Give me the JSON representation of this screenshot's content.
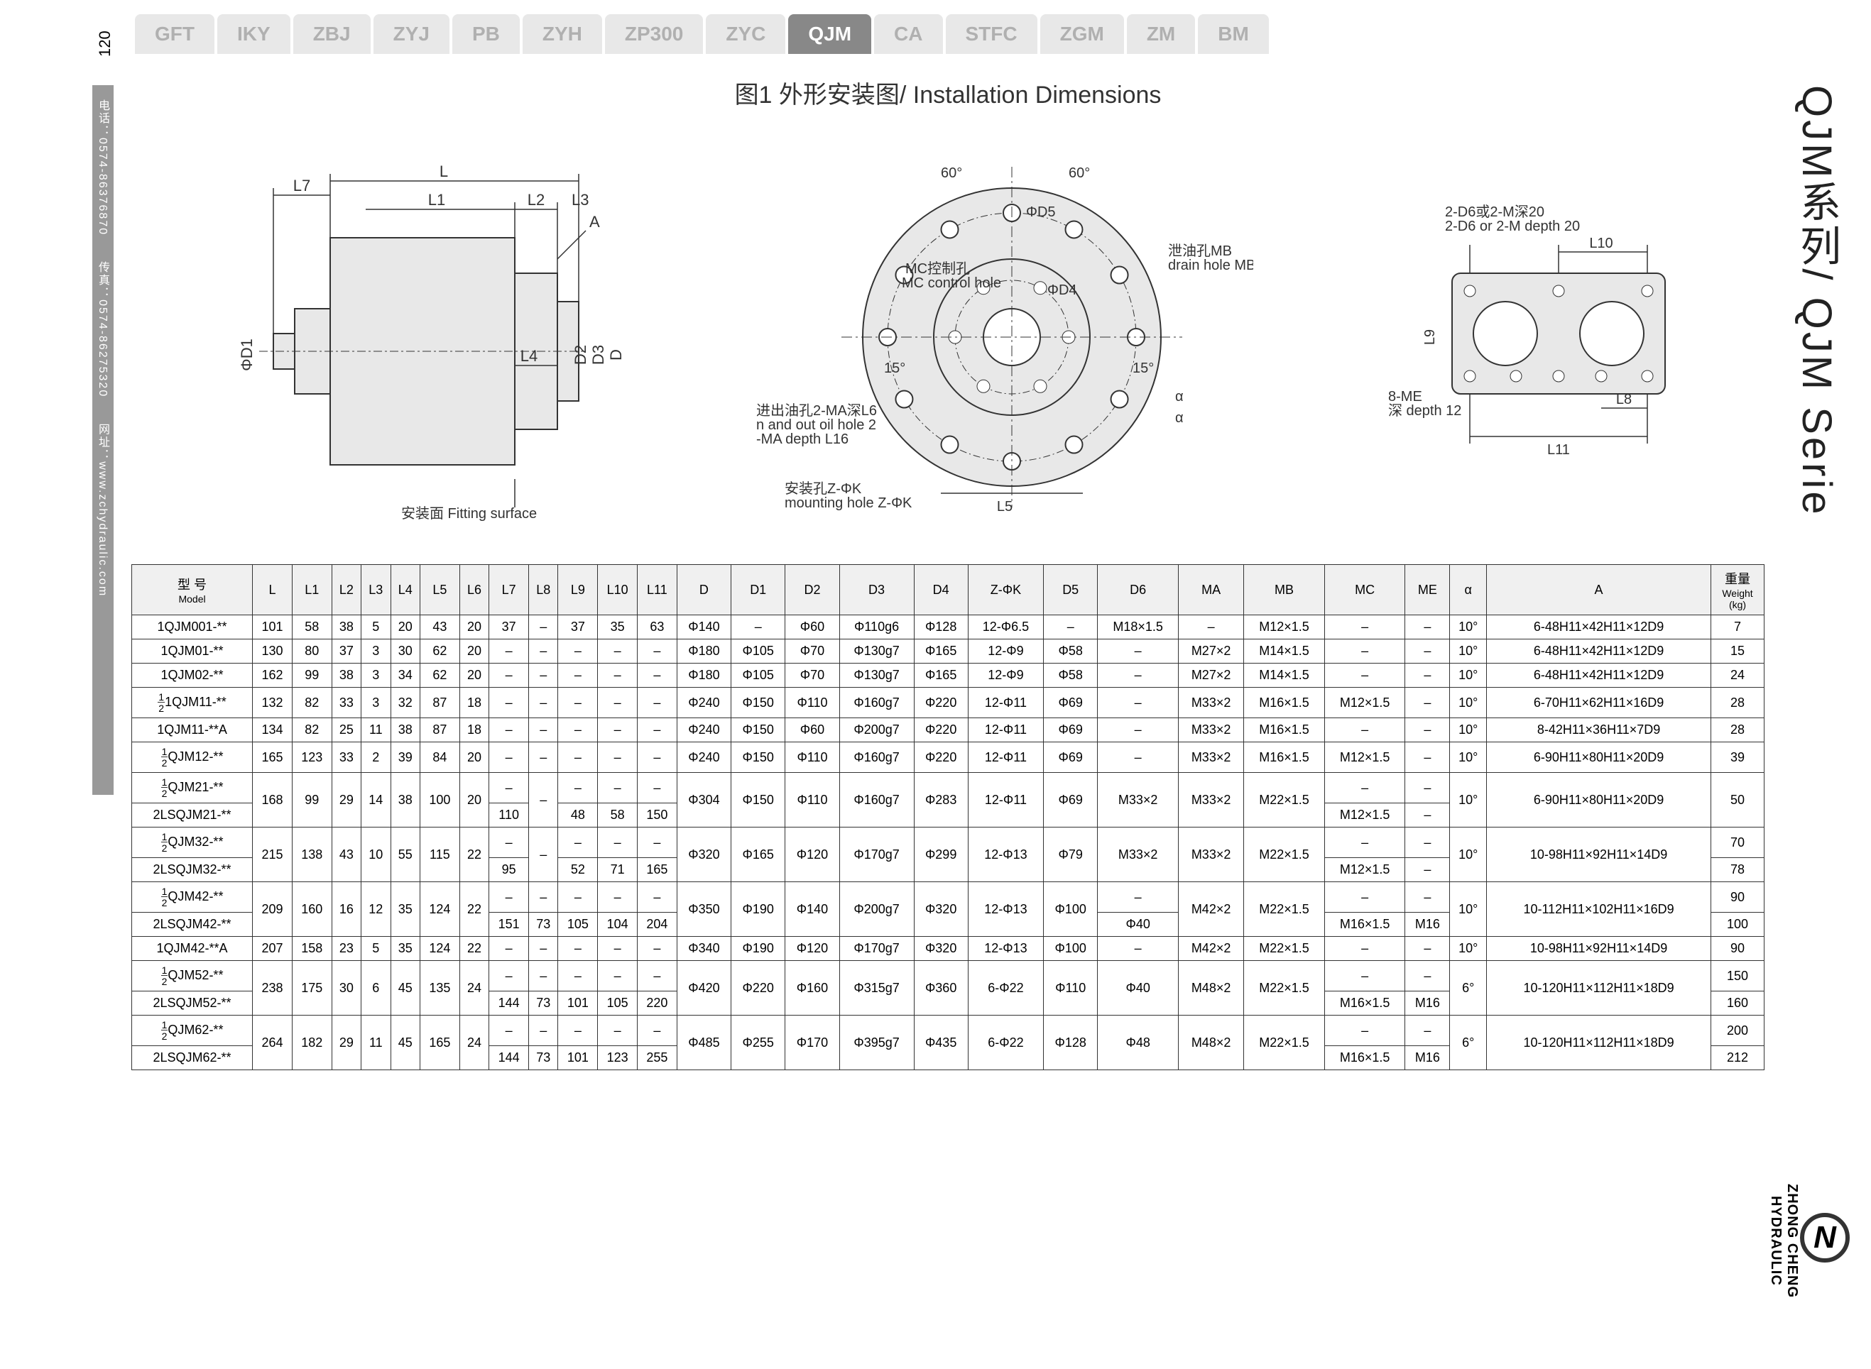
{
  "page_number": "120",
  "left_strip": "电话：0574-86376870　　传真：0574-86275320　　网址：www.zchydraulic.com",
  "right_title": "QJM系列/ QJM Serie",
  "right_brand_line1": "ZHONG CHENG",
  "right_brand_line2": "HYDRAULIC",
  "tabs": [
    "GFT",
    "IKY",
    "ZBJ",
    "ZYJ",
    "PB",
    "ZYH",
    "ZP300",
    "ZYC",
    "QJM",
    "CA",
    "STFC",
    "ZGM",
    "ZM",
    "BM"
  ],
  "active_tab_index": 8,
  "fig_title": "图1 外形安装图/ Installation  Dimensions",
  "diagram_labels": {
    "left_view": [
      "L7",
      "L",
      "L1",
      "L2",
      "L3",
      "A",
      "L4",
      "ΦD1",
      "D2",
      "D3",
      "D",
      "安装面 Fitting surface"
    ],
    "center_view": [
      "60°",
      "60°",
      "ΦD5",
      "ΦD4",
      "15°",
      "15°",
      "α",
      "α",
      "L5",
      "MC控制孔",
      "MC control hole",
      "泄油孔MB",
      "drain hole MB",
      "进出油孔2-MA深L6",
      "n and out oil hole 2",
      "-MA  depth L16",
      "安装孔Z-ΦK",
      "mounting hole Z-ΦK"
    ],
    "right_view": [
      "2-D6或2-M深20",
      "2-D6 or 2-M depth 20",
      "L10",
      "L9",
      "L8",
      "L11",
      "8-ME",
      "深 depth 12"
    ]
  },
  "table": {
    "columns": [
      {
        "l1": "型 号",
        "l2": "Model"
      },
      {
        "l1": "L"
      },
      {
        "l1": "L1"
      },
      {
        "l1": "L2"
      },
      {
        "l1": "L3"
      },
      {
        "l1": "L4"
      },
      {
        "l1": "L5"
      },
      {
        "l1": "L6"
      },
      {
        "l1": "L7"
      },
      {
        "l1": "L8"
      },
      {
        "l1": "L9"
      },
      {
        "l1": "L10"
      },
      {
        "l1": "L11"
      },
      {
        "l1": "D"
      },
      {
        "l1": "D1"
      },
      {
        "l1": "D2"
      },
      {
        "l1": "D3"
      },
      {
        "l1": "D4"
      },
      {
        "l1": "Z-ΦK"
      },
      {
        "l1": "D5"
      },
      {
        "l1": "D6"
      },
      {
        "l1": "MA"
      },
      {
        "l1": "MB"
      },
      {
        "l1": "MC"
      },
      {
        "l1": "ME"
      },
      {
        "l1": "α"
      },
      {
        "l1": "A"
      },
      {
        "l1": "重量",
        "l2": "Weight",
        "l3": "(kg)"
      }
    ],
    "rows": [
      {
        "model": "1QJM001-**",
        "c": [
          "101",
          "58",
          "38",
          "5",
          "20",
          "43",
          "20",
          "37",
          "–",
          "37",
          "35",
          "63",
          "Φ140",
          "–",
          "Φ60",
          "Φ110g6",
          "Φ128",
          "12-Φ6.5",
          "–",
          "M18×1.5",
          "–",
          "M12×1.5",
          "–",
          "–",
          "10°",
          "6-48H11×42H11×12D9",
          "7"
        ]
      },
      {
        "model": "1QJM01-**",
        "c": [
          "130",
          "80",
          "37",
          "3",
          "30",
          "62",
          "20",
          "–",
          "–",
          "–",
          "–",
          "–",
          "Φ180",
          "Φ105",
          "Φ70",
          "Φ130g7",
          "Φ165",
          "12-Φ9",
          "Φ58",
          "–",
          "M27×2",
          "M14×1.5",
          "–",
          "–",
          "10°",
          "6-48H11×42H11×12D9",
          "15"
        ]
      },
      {
        "model": "1QJM02-**",
        "c": [
          "162",
          "99",
          "38",
          "3",
          "34",
          "62",
          "20",
          "–",
          "–",
          "–",
          "–",
          "–",
          "Φ180",
          "Φ105",
          "Φ70",
          "Φ130g7",
          "Φ165",
          "12-Φ9",
          "Φ58",
          "–",
          "M27×2",
          "M14×1.5",
          "–",
          "–",
          "10°",
          "6-48H11×42H11×12D9",
          "24"
        ]
      },
      {
        "model_frac": {
          "n": "1",
          "d": "2",
          "rest": "1QJM11-**"
        },
        "c": [
          "132",
          "82",
          "33",
          "3",
          "32",
          "87",
          "18",
          "–",
          "–",
          "–",
          "–",
          "–",
          "Φ240",
          "Φ150",
          "Φ110",
          "Φ160g7",
          "Φ220",
          "12-Φ11",
          "Φ69",
          "–",
          "M33×2",
          "M16×1.5",
          "M12×1.5",
          "–",
          "10°",
          "6-70H11×62H11×16D9",
          "28"
        ]
      },
      {
        "model": "1QJM11-**A",
        "c": [
          "134",
          "82",
          "25",
          "11",
          "38",
          "87",
          "18",
          "–",
          "–",
          "–",
          "–",
          "–",
          "Φ240",
          "Φ150",
          "Φ60",
          "Φ200g7",
          "Φ220",
          "12-Φ11",
          "Φ69",
          "–",
          "M33×2",
          "M16×1.5",
          "–",
          "–",
          "10°",
          "8-42H11×36H11×7D9",
          "28"
        ]
      },
      {
        "model_frac": {
          "n": "1",
          "d": "2",
          "rest": "QJM12-**"
        },
        "c": [
          "165",
          "123",
          "33",
          "2",
          "39",
          "84",
          "20",
          "–",
          "–",
          "–",
          "–",
          "–",
          "Φ240",
          "Φ150",
          "Φ110",
          "Φ160g7",
          "Φ220",
          "12-Φ11",
          "Φ69",
          "–",
          "M33×2",
          "M16×1.5",
          "M12×1.5",
          "–",
          "10°",
          "6-90H11×80H11×20D9",
          "39"
        ]
      },
      {
        "double": true,
        "model1_frac": {
          "n": "1",
          "d": "2",
          "rest": "QJM21-**"
        },
        "model2": "2LSQJM21-**",
        "c": [
          "168",
          "99",
          "29",
          "14",
          "38",
          "100",
          "20",
          {
            "t": "–",
            "b": "110"
          },
          "–",
          {
            "t": "–",
            "b": "48"
          },
          {
            "t": "–",
            "b": "58"
          },
          {
            "t": "–",
            "b": "150"
          },
          "Φ304",
          "Φ150",
          "Φ110",
          "Φ160g7",
          "Φ283",
          "12-Φ11",
          "Φ69",
          "M33×2",
          "M33×2",
          "M22×1.5",
          {
            "t": "–",
            "b": "M12×1.5"
          },
          {
            "t": "–",
            "b": "–"
          },
          "10°",
          "6-90H11×80H11×20D9",
          "50"
        ]
      },
      {
        "double": true,
        "model1_frac": {
          "n": "1",
          "d": "2",
          "rest": "QJM32-**"
        },
        "model2": "2LSQJM32-**",
        "c": [
          "215",
          "138",
          "43",
          "10",
          "55",
          "115",
          "22",
          {
            "t": "–",
            "b": "95"
          },
          "–",
          {
            "t": "–",
            "b": "52"
          },
          {
            "t": "–",
            "b": "71"
          },
          {
            "t": "–",
            "b": "165"
          },
          "Φ320",
          "Φ165",
          "Φ120",
          "Φ170g7",
          "Φ299",
          "12-Φ13",
          "Φ79",
          "M33×2",
          "M33×2",
          "M22×1.5",
          {
            "t": "–",
            "b": "M12×1.5"
          },
          {
            "t": "–",
            "b": "–"
          },
          "10°",
          "10-98H11×92H11×14D9",
          {
            "t": "70",
            "b": "78"
          }
        ]
      },
      {
        "double": true,
        "model1_frac": {
          "n": "1",
          "d": "2",
          "rest": "QJM42-**"
        },
        "model2": "2LSQJM42-**",
        "c": [
          "209",
          "160",
          "16",
          "12",
          "35",
          "124",
          "22",
          {
            "t": "–",
            "b": "151"
          },
          {
            "t": "–",
            "b": "73"
          },
          {
            "t": "–",
            "b": "105"
          },
          {
            "t": "–",
            "b": "104"
          },
          {
            "t": "–",
            "b": "204"
          },
          "Φ350",
          "Φ190",
          "Φ140",
          "Φ200g7",
          "Φ320",
          "12-Φ13",
          "Φ100",
          {
            "t": "–",
            "b": "Φ40"
          },
          "M42×2",
          "M22×1.5",
          {
            "t": "–",
            "b": "M16×1.5"
          },
          {
            "t": "–",
            "b": "M16"
          },
          "10°",
          "10-112H11×102H11×16D9",
          {
            "t": "90",
            "b": "100"
          }
        ]
      },
      {
        "model": "1QJM42-**A",
        "c": [
          "207",
          "158",
          "23",
          "5",
          "35",
          "124",
          "22",
          "–",
          "–",
          "–",
          "–",
          "–",
          "Φ340",
          "Φ190",
          "Φ120",
          "Φ170g7",
          "Φ320",
          "12-Φ13",
          "Φ100",
          "–",
          "M42×2",
          "M22×1.5",
          "–",
          "–",
          "10°",
          "10-98H11×92H11×14D9",
          "90"
        ]
      },
      {
        "double": true,
        "model1_frac": {
          "n": "1",
          "d": "2",
          "rest": "QJM52-**"
        },
        "model2": "2LSQJM52-**",
        "c": [
          "238",
          "175",
          "30",
          "6",
          "45",
          "135",
          "24",
          {
            "t": "–",
            "b": "144"
          },
          {
            "t": "–",
            "b": "73"
          },
          {
            "t": "–",
            "b": "101"
          },
          {
            "t": "–",
            "b": "105"
          },
          {
            "t": "–",
            "b": "220"
          },
          "Φ420",
          "Φ220",
          "Φ160",
          "Φ315g7",
          "Φ360",
          "6-Φ22",
          "Φ110",
          "Φ40",
          "M48×2",
          "M22×1.5",
          {
            "t": "–",
            "b": "M16×1.5"
          },
          {
            "t": "–",
            "b": "M16"
          },
          "6°",
          "10-120H11×112H11×18D9",
          {
            "t": "150",
            "b": "160"
          }
        ]
      },
      {
        "double": true,
        "model1_frac": {
          "n": "1",
          "d": "2",
          "rest": "QJM62-**"
        },
        "model2": "2LSQJM62-**",
        "c": [
          "264",
          "182",
          "29",
          "11",
          "45",
          "165",
          "24",
          {
            "t": "–",
            "b": "144"
          },
          {
            "t": "–",
            "b": "73"
          },
          {
            "t": "–",
            "b": "101"
          },
          {
            "t": "–",
            "b": "123"
          },
          {
            "t": "–",
            "b": "255"
          },
          "Φ485",
          "Φ255",
          "Φ170",
          "Φ395g7",
          "Φ435",
          "6-Φ22",
          "Φ128",
          "Φ48",
          "M48×2",
          "M22×1.5",
          {
            "t": "–",
            "b": "M16×1.5"
          },
          {
            "t": "–",
            "b": "M16"
          },
          "6°",
          "10-120H11×112H11×18D9",
          {
            "t": "200",
            "b": "212"
          }
        ]
      }
    ]
  },
  "colors": {
    "tab_bg": "#e8e8e8",
    "tab_fg": "#b0b0b0",
    "tab_active_bg": "#888888",
    "shape_fill": "#e8e8e8",
    "line": "#333333"
  }
}
